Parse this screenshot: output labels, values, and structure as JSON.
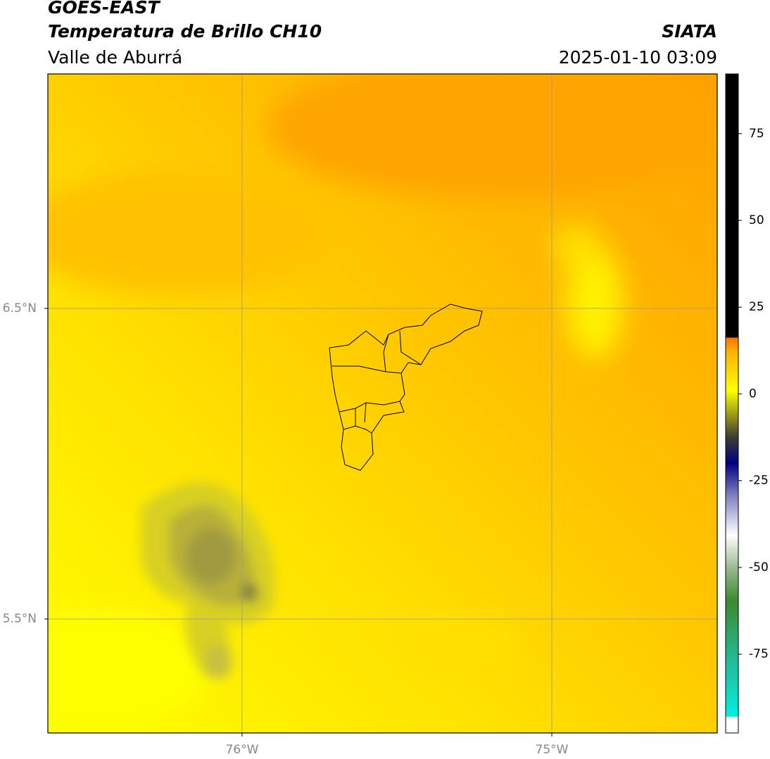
{
  "header": {
    "title": "GOES-EAST",
    "subtitle": "Temperatura de Brillo CH10",
    "region": "Valle de Aburrá",
    "source": "SIATA",
    "datetime": "2025-01-10 03:09"
  },
  "map": {
    "xlim": [
      -76.627,
      -74.466
    ],
    "ylim": [
      5.133,
      7.255
    ],
    "xticks": [
      {
        "value": -76,
        "label": "76°W"
      },
      {
        "value": -75,
        "label": "75°W"
      }
    ],
    "yticks": [
      {
        "value": 6.5,
        "label": "6.5°N"
      },
      {
        "value": 5.5,
        "label": "5.5°N"
      }
    ],
    "grid": true
  },
  "colorbar": {
    "lim": [
      -97.7,
      92.2
    ],
    "ticks": [
      75,
      50,
      25,
      0,
      -25,
      -50,
      -75
    ]
  }
}
